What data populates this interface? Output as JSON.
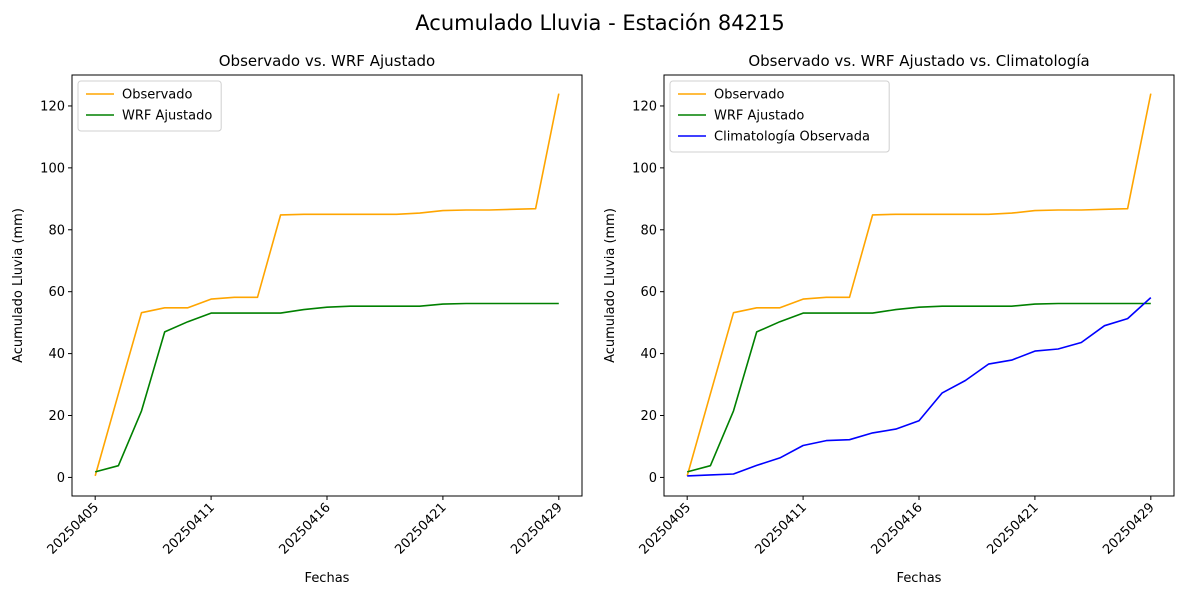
{
  "figure": {
    "title": "Acumulado Lluvia - Estación 84215"
  },
  "chart_data": [
    {
      "type": "line",
      "title": "Observado vs. WRF Ajustado",
      "xlabel": "Fechas",
      "ylabel": "Acumulado Lluvia (mm)",
      "ylim": [
        -6,
        130
      ],
      "yticks": [
        0,
        20,
        40,
        60,
        80,
        100,
        120
      ],
      "xticks": [
        {
          "pos": 0,
          "label": "20250405"
        },
        {
          "pos": 5,
          "label": "20250411"
        },
        {
          "pos": 10,
          "label": "20250416"
        },
        {
          "pos": 15,
          "label": "20250421"
        },
        {
          "pos": 20,
          "label": "20250429"
        }
      ],
      "xlim": [
        -1,
        21
      ],
      "grid": false,
      "legend": "upper left",
      "series": [
        {
          "name": "Observado",
          "color": "#ffa500",
          "x": [
            0,
            1,
            2,
            3,
            4,
            5,
            6,
            7,
            8,
            9,
            10,
            11,
            12,
            13,
            14,
            15,
            16,
            17,
            18,
            19,
            20
          ],
          "y": [
            0.5,
            27,
            53.2,
            54.8,
            54.8,
            57.6,
            58.2,
            58.2,
            84.8,
            85,
            85,
            85,
            85,
            85,
            85.4,
            86.2,
            86.4,
            86.4,
            86.6,
            86.8,
            124
          ]
        },
        {
          "name": "WRF Ajustado",
          "color": "#008000",
          "x": [
            0,
            1,
            2,
            3,
            4,
            5,
            6,
            7,
            8,
            9,
            10,
            11,
            12,
            13,
            14,
            15,
            16,
            17,
            18,
            19,
            20
          ],
          "y": [
            1.8,
            3.8,
            21.5,
            47,
            50.3,
            53.1,
            53.1,
            53.1,
            53.1,
            54.2,
            55,
            55.3,
            55.3,
            55.3,
            55.3,
            56,
            56.2,
            56.2,
            56.2,
            56.2,
            56.2
          ]
        }
      ]
    },
    {
      "type": "line",
      "title": "Observado vs. WRF Ajustado vs. Climatología",
      "xlabel": "Fechas",
      "ylabel": "Acumulado Lluvia (mm)",
      "ylim": [
        -6,
        130
      ],
      "yticks": [
        0,
        20,
        40,
        60,
        80,
        100,
        120
      ],
      "xticks": [
        {
          "pos": 0,
          "label": "20250405"
        },
        {
          "pos": 5,
          "label": "20250411"
        },
        {
          "pos": 10,
          "label": "20250416"
        },
        {
          "pos": 15,
          "label": "20250421"
        },
        {
          "pos": 20,
          "label": "20250429"
        }
      ],
      "xlim": [
        -1,
        21
      ],
      "grid": false,
      "legend": "upper left",
      "series": [
        {
          "name": "Observado",
          "color": "#ffa500",
          "x": [
            0,
            1,
            2,
            3,
            4,
            5,
            6,
            7,
            8,
            9,
            10,
            11,
            12,
            13,
            14,
            15,
            16,
            17,
            18,
            19,
            20
          ],
          "y": [
            0.5,
            27,
            53.2,
            54.8,
            54.8,
            57.6,
            58.2,
            58.2,
            84.8,
            85,
            85,
            85,
            85,
            85,
            85.4,
            86.2,
            86.4,
            86.4,
            86.6,
            86.8,
            124
          ]
        },
        {
          "name": "WRF Ajustado",
          "color": "#008000",
          "x": [
            0,
            1,
            2,
            3,
            4,
            5,
            6,
            7,
            8,
            9,
            10,
            11,
            12,
            13,
            14,
            15,
            16,
            17,
            18,
            19,
            20
          ],
          "y": [
            1.8,
            3.8,
            21.5,
            47,
            50.3,
            53.1,
            53.1,
            53.1,
            53.1,
            54.2,
            55,
            55.3,
            55.3,
            55.3,
            55.3,
            56,
            56.2,
            56.2,
            56.2,
            56.2,
            56.2
          ]
        },
        {
          "name": "Climatología Observada",
          "color": "#0000ff",
          "x": [
            0,
            1,
            2,
            3,
            4,
            5,
            6,
            7,
            8,
            9,
            10,
            11,
            12,
            13,
            14,
            15,
            16,
            17,
            18,
            19,
            20
          ],
          "y": [
            0.5,
            0.8,
            1.1,
            3.9,
            6.3,
            10.3,
            11.9,
            12.2,
            14.4,
            15.6,
            18.3,
            27.3,
            31.3,
            36.6,
            37.9,
            40.8,
            41.5,
            43.6,
            49,
            51.3,
            58.1
          ]
        }
      ]
    }
  ]
}
